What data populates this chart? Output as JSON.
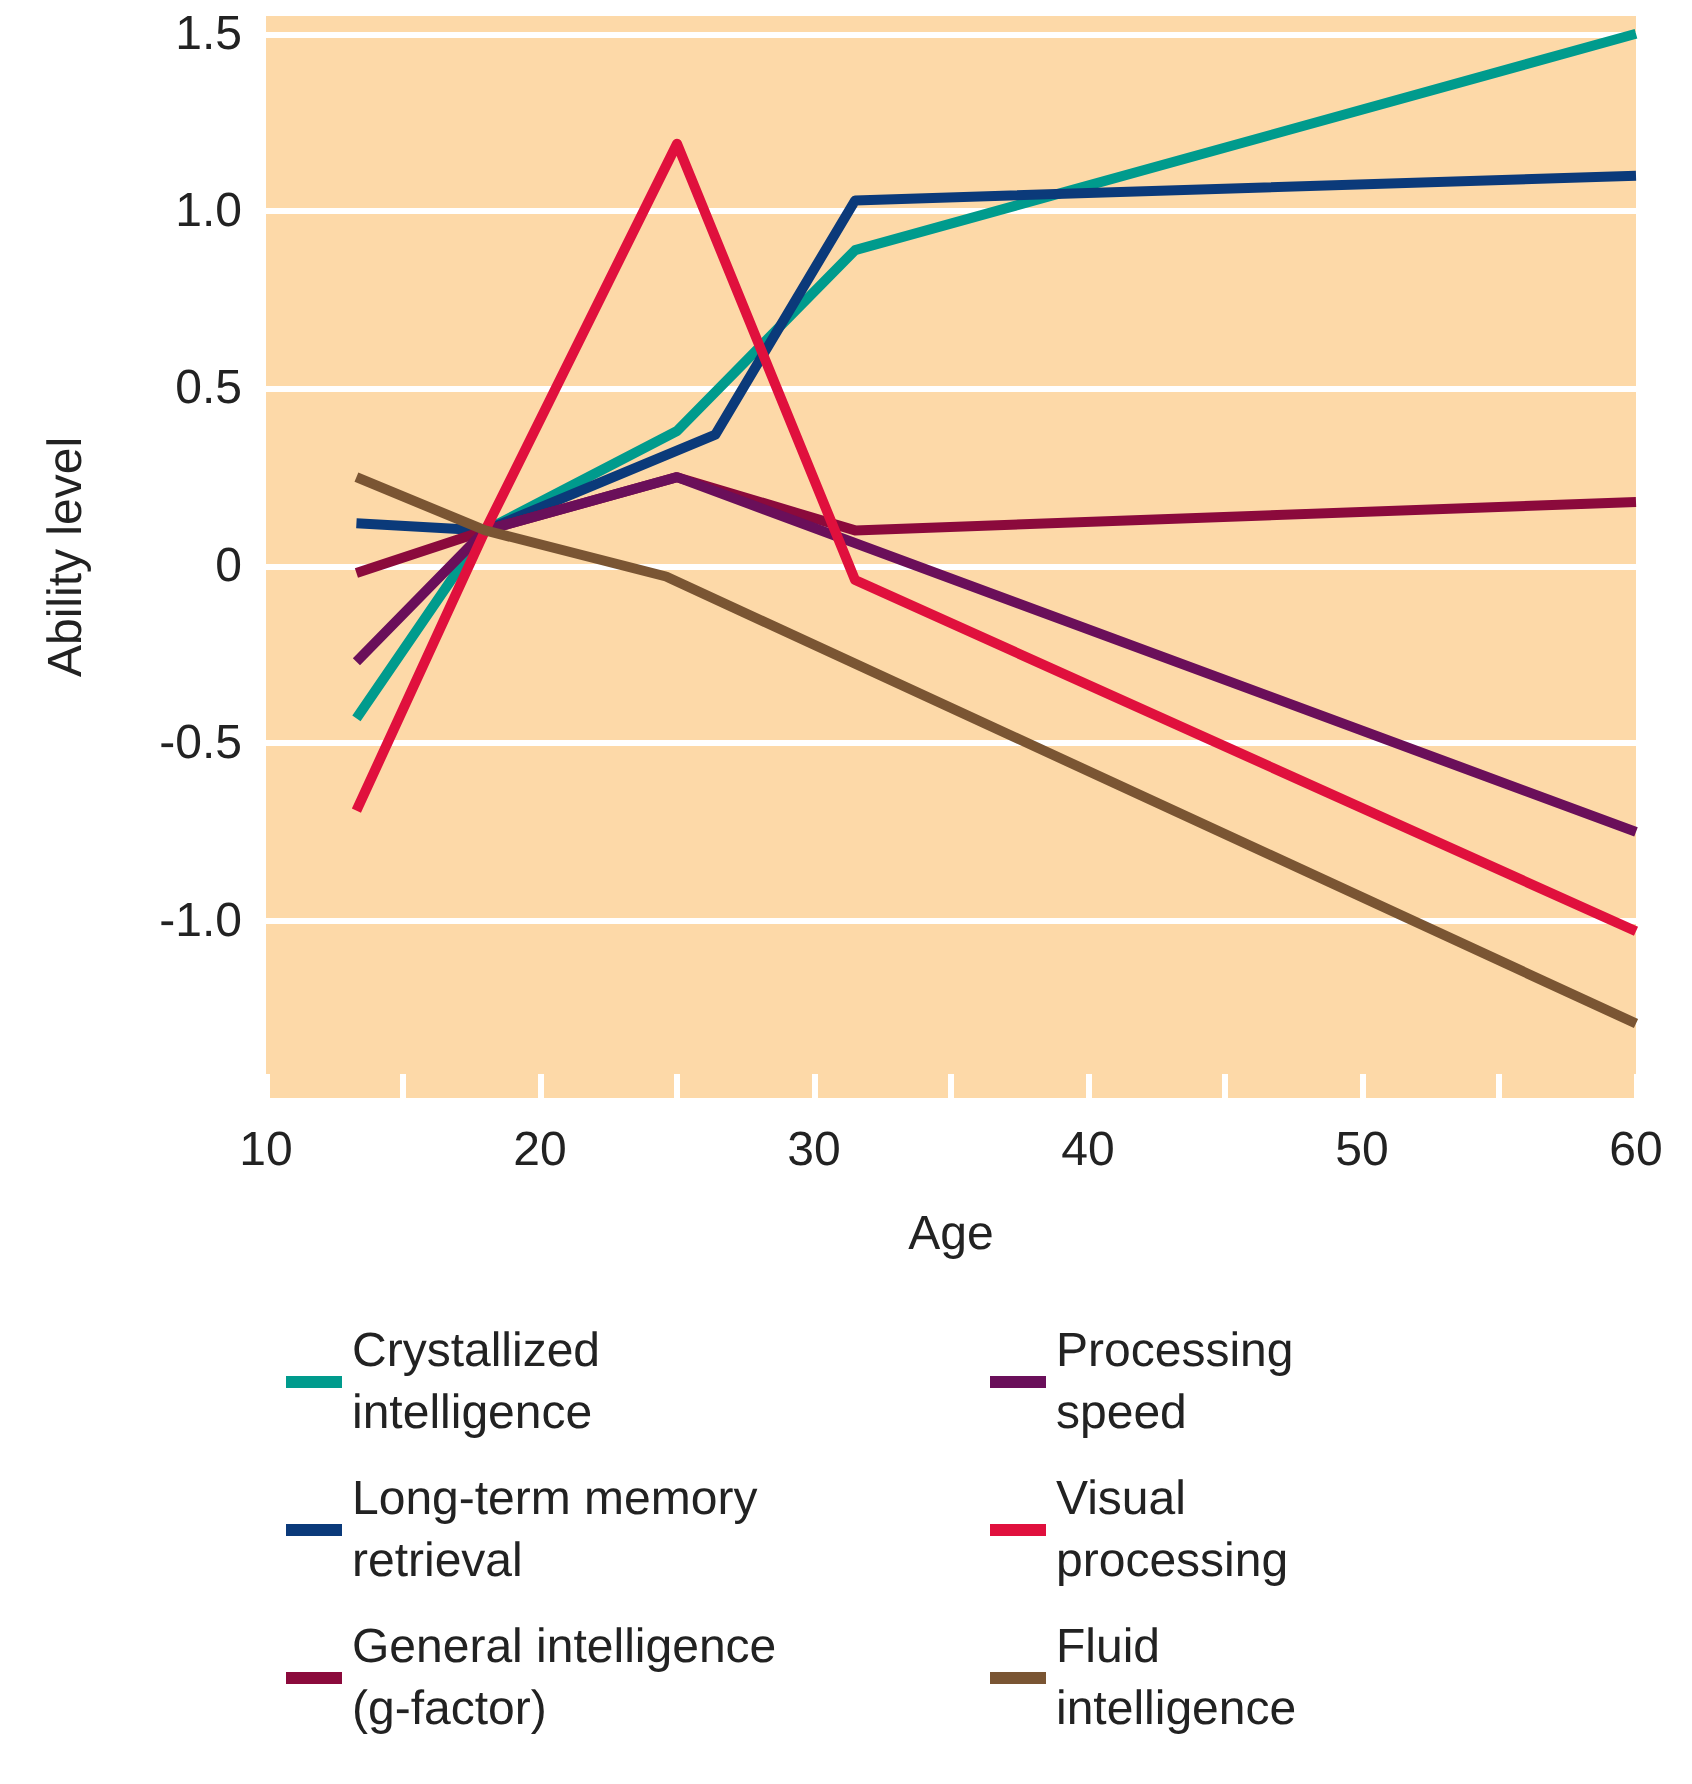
{
  "chart_data": {
    "type": "line",
    "xlabel": "Age",
    "ylabel": "Ability level",
    "xlim": [
      10,
      60
    ],
    "xticks": [
      10,
      {
        "value": 15,
        "label": null
      },
      20,
      {
        "value": 25,
        "label": null
      },
      30,
      {
        "value": 35,
        "label": null
      },
      40,
      {
        "value": 45,
        "label": null
      },
      50,
      {
        "value": 55,
        "label": null
      },
      60
    ],
    "ylim": [
      -1.5,
      1.55
    ],
    "yticks": [
      {
        "value": -1,
        "label": "-1.0"
      },
      -0.5,
      0,
      0.5,
      {
        "value": 1,
        "label": "1.0"
      },
      1.5
    ],
    "grid": "y",
    "legend": "bottom",
    "marker": "none",
    "line_style": "solid",
    "series": [
      {
        "name": "Crystallized intelligence",
        "color": "#009b8d",
        "x": [
          13.3,
          18,
          25,
          31.5,
          60
        ],
        "values": [
          -0.43,
          0.1,
          0.38,
          0.89,
          1.5
        ]
      },
      {
        "name": "Long-term memory retrieval",
        "color": "#0b3a7a",
        "x": [
          13.3,
          18,
          26.4,
          31.5,
          60
        ],
        "values": [
          0.12,
          0.1,
          0.37,
          1.03,
          1.1
        ]
      },
      {
        "name": "General intelligence (g-factor)",
        "color": "#8b0a3c",
        "x": [
          13.3,
          18,
          25,
          31.5,
          60
        ],
        "values": [
          -0.02,
          0.1,
          0.25,
          0.1,
          0.18
        ]
      },
      {
        "name": "Processing speed",
        "color": "#6a0f5a",
        "x": [
          13.3,
          18,
          25,
          60
        ],
        "values": [
          -0.27,
          0.1,
          0.25,
          -0.75
        ]
      },
      {
        "name": "Visual processing",
        "color": "#e0103d",
        "x": [
          13.3,
          18,
          25,
          31.5,
          60
        ],
        "values": [
          -0.69,
          0.1,
          1.19,
          -0.04,
          -1.03
        ]
      },
      {
        "name": "Fluid intelligence",
        "color": "#7a5533",
        "x": [
          13.3,
          18,
          24.6,
          60
        ],
        "values": [
          0.25,
          0.1,
          -0.03,
          -1.29
        ]
      }
    ]
  }
}
